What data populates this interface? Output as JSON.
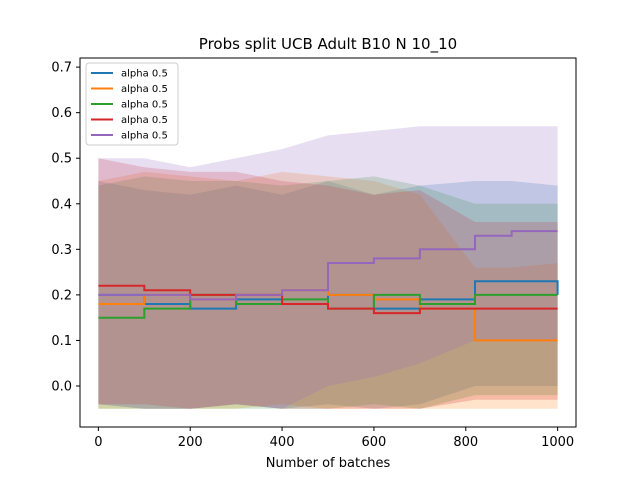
{
  "chart_data": {
    "type": "line",
    "title": "Probs split UCB Adult B10 N 10_10",
    "xlabel": "Number of batches",
    "ylabel": "",
    "xlim": [
      -40,
      1040
    ],
    "ylim": [
      -0.09,
      0.72
    ],
    "xticks": [
      0,
      200,
      400,
      600,
      800,
      1000
    ],
    "yticks": [
      0.0,
      0.1,
      0.2,
      0.3,
      0.4,
      0.5,
      0.6,
      0.7
    ],
    "xtick_labels": [
      "0",
      "200",
      "400",
      "600",
      "800",
      "1000"
    ],
    "ytick_labels": [
      "0.0",
      "0.1",
      "0.2",
      "0.3",
      "0.4",
      "0.5",
      "0.6",
      "0.7"
    ],
    "legend_position": "top-left",
    "grid": false,
    "series": [
      {
        "name": "alpha 0.5",
        "color": "#1f77b4",
        "x": [
          0,
          100,
          200,
          300,
          400,
          500,
          600,
          700,
          820,
          900,
          1000
        ],
        "values": [
          0.2,
          0.18,
          0.17,
          0.19,
          0.18,
          0.2,
          0.17,
          0.19,
          0.23,
          0.23,
          0.2
        ],
        "band_lower": [
          -0.04,
          -0.05,
          -0.05,
          -0.04,
          -0.05,
          -0.04,
          -0.05,
          -0.04,
          0.0,
          0.0,
          0.0
        ],
        "band_upper": [
          0.45,
          0.43,
          0.42,
          0.44,
          0.42,
          0.45,
          0.42,
          0.44,
          0.45,
          0.45,
          0.44
        ]
      },
      {
        "name": "alpha 0.5",
        "color": "#ff7f0e",
        "x": [
          0,
          100,
          200,
          300,
          400,
          500,
          600,
          700,
          820,
          900,
          1000
        ],
        "values": [
          0.18,
          0.2,
          0.19,
          0.2,
          0.21,
          0.2,
          0.19,
          0.17,
          0.1,
          0.1,
          0.1
        ],
        "band_lower": [
          -0.05,
          -0.05,
          -0.05,
          -0.05,
          -0.04,
          -0.05,
          -0.05,
          -0.05,
          -0.05,
          -0.05,
          -0.05
        ],
        "band_upper": [
          0.45,
          0.47,
          0.46,
          0.45,
          0.47,
          0.46,
          0.45,
          0.42,
          0.26,
          0.26,
          0.27
        ]
      },
      {
        "name": "alpha 0.5",
        "color": "#2ca02c",
        "x": [
          0,
          100,
          200,
          300,
          400,
          500,
          600,
          700,
          820,
          900,
          1000
        ],
        "values": [
          0.15,
          0.17,
          0.2,
          0.18,
          0.19,
          0.17,
          0.2,
          0.18,
          0.2,
          0.2,
          0.2
        ],
        "band_lower": [
          -0.05,
          -0.05,
          -0.05,
          -0.05,
          -0.05,
          -0.05,
          -0.04,
          -0.05,
          -0.02,
          -0.02,
          -0.02
        ],
        "band_upper": [
          0.44,
          0.46,
          0.45,
          0.45,
          0.44,
          0.45,
          0.46,
          0.44,
          0.4,
          0.4,
          0.4
        ]
      },
      {
        "name": "alpha 0.5",
        "color": "#d62728",
        "x": [
          0,
          100,
          200,
          300,
          400,
          500,
          600,
          700,
          820,
          900,
          1000
        ],
        "values": [
          0.22,
          0.21,
          0.2,
          0.2,
          0.18,
          0.17,
          0.16,
          0.17,
          0.17,
          0.17,
          0.17
        ],
        "band_lower": [
          -0.04,
          -0.04,
          -0.05,
          -0.04,
          -0.05,
          -0.05,
          -0.05,
          -0.05,
          -0.03,
          -0.03,
          -0.03
        ],
        "band_upper": [
          0.5,
          0.48,
          0.47,
          0.47,
          0.45,
          0.44,
          0.42,
          0.43,
          0.36,
          0.36,
          0.36
        ]
      },
      {
        "name": "alpha 0.5",
        "color": "#9467bd",
        "x": [
          0,
          100,
          200,
          300,
          400,
          500,
          600,
          700,
          820,
          900,
          1000
        ],
        "values": [
          0.2,
          0.2,
          0.19,
          0.2,
          0.21,
          0.27,
          0.28,
          0.3,
          0.33,
          0.34,
          0.34
        ],
        "band_lower": [
          -0.04,
          -0.05,
          -0.05,
          -0.04,
          -0.05,
          0.0,
          0.02,
          0.05,
          0.1,
          0.1,
          0.1
        ],
        "band_upper": [
          0.5,
          0.5,
          0.48,
          0.5,
          0.52,
          0.55,
          0.56,
          0.57,
          0.57,
          0.57,
          0.57
        ]
      }
    ]
  }
}
